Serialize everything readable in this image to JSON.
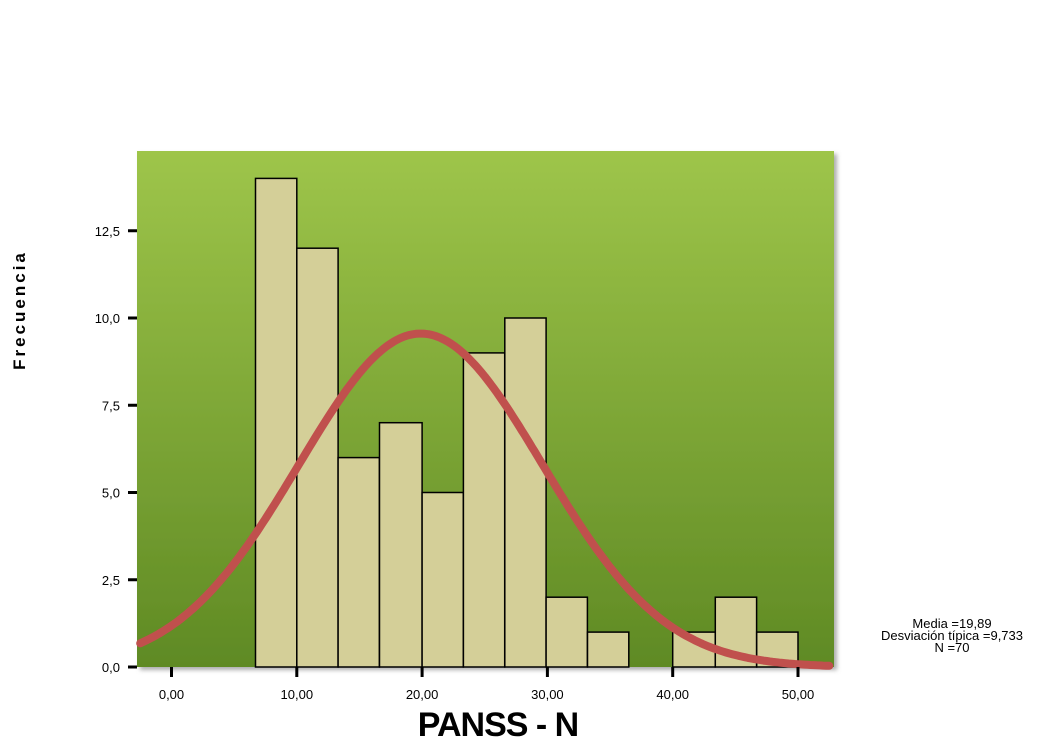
{
  "chart_data": {
    "type": "bar",
    "subtype": "histogram",
    "xlabel": "PANSS - N",
    "ylabel": "Frecuencia",
    "x_ticks": [
      "0,00",
      "10,00",
      "20,00",
      "30,00",
      "40,00",
      "50,00"
    ],
    "x_tick_values": [
      0,
      10,
      20,
      30,
      40,
      50
    ],
    "y_ticks": [
      "0,0",
      "2,5",
      "5,0",
      "7,5",
      "10,0",
      "12,5"
    ],
    "y_tick_values": [
      0,
      2.5,
      5,
      7.5,
      10,
      12.5
    ],
    "xlim": [
      -2.5,
      52.5
    ],
    "ylim": [
      0,
      14.8
    ],
    "bins": [
      {
        "x0": 6.7,
        "x1": 10.0,
        "count": 14
      },
      {
        "x0": 10.0,
        "x1": 13.3,
        "count": 12
      },
      {
        "x0": 13.3,
        "x1": 16.6,
        "count": 6
      },
      {
        "x0": 16.6,
        "x1": 20.0,
        "count": 7
      },
      {
        "x0": 20.0,
        "x1": 23.3,
        "count": 5
      },
      {
        "x0": 23.3,
        "x1": 26.6,
        "count": 9
      },
      {
        "x0": 26.6,
        "x1": 29.9,
        "count": 10
      },
      {
        "x0": 29.9,
        "x1": 33.2,
        "count": 2
      },
      {
        "x0": 33.2,
        "x1": 36.5,
        "count": 1
      },
      {
        "x0": 40.0,
        "x1": 43.4,
        "count": 1
      },
      {
        "x0": 43.4,
        "x1": 46.7,
        "count": 2
      },
      {
        "x0": 46.7,
        "x1": 50.0,
        "count": 1
      }
    ],
    "normal_curve": {
      "mean": 19.89,
      "sd": 9.733,
      "n": 70,
      "bin_width": 3.33
    },
    "stats_lines": [
      "Media =19,89",
      "Desviación típica =9,733",
      "N =70"
    ],
    "colors": {
      "background_top": "#9ec54a",
      "background_bottom": "#5f8a24",
      "bar_fill": "#d4cf98",
      "bar_stroke": "#000000",
      "curve": "#c0504d"
    },
    "grid": false,
    "legend": "none"
  }
}
